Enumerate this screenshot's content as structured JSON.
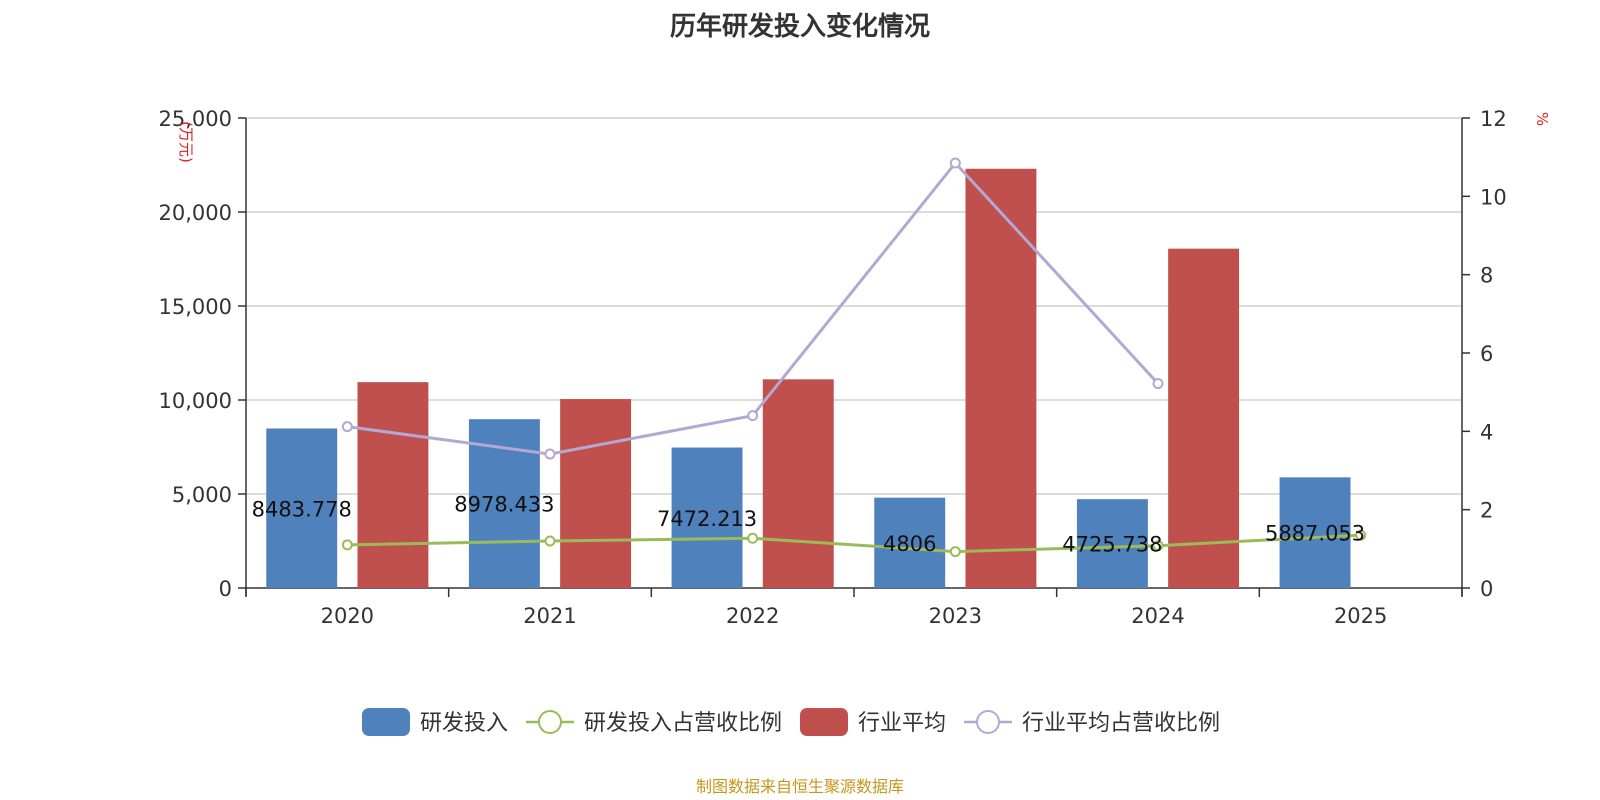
{
  "chart_data": {
    "type": "bar",
    "title": "历年研发投入变化情况",
    "categories": [
      "2020",
      "2021",
      "2022",
      "2023",
      "2024",
      "2025"
    ],
    "y_left": {
      "unit": "(万元)",
      "ylim": [
        0,
        25000
      ],
      "ticks": [
        "0",
        "5,000",
        "10,000",
        "15,000",
        "20,000",
        "25,000"
      ]
    },
    "y_right": {
      "unit": "%",
      "ylim": [
        0,
        12
      ],
      "ticks": [
        "0",
        "2",
        "4",
        "6",
        "8",
        "10",
        "12"
      ]
    },
    "series": [
      {
        "name": "研发投入",
        "kind": "bar",
        "axis": "left",
        "color": "#4f81bd",
        "values": [
          8483.778,
          8978.433,
          7472.213,
          4806,
          4725.738,
          5887.053
        ],
        "labels": [
          "8483.778",
          "8978.433",
          "7472.213",
          "4806",
          "4725.738",
          "5887.053"
        ]
      },
      {
        "name": "研发投入占营收比例",
        "kind": "line",
        "axis": "right",
        "color": "#9bbb59",
        "values": [
          1.1,
          1.2,
          1.27,
          0.93,
          1.08,
          1.35
        ]
      },
      {
        "name": "行业平均",
        "kind": "bar",
        "axis": "left",
        "color": "#c0504d",
        "values": [
          10950,
          10050,
          11100,
          22300,
          18050,
          null
        ]
      },
      {
        "name": "行业平均占营收比例",
        "kind": "line",
        "axis": "right",
        "color": "#b3a8d3",
        "values": [
          4.12,
          3.42,
          4.4,
          10.85,
          5.22,
          null
        ]
      }
    ],
    "grid": true,
    "legend": "bottom",
    "source": "制图数据来自恒生聚源数据库"
  }
}
